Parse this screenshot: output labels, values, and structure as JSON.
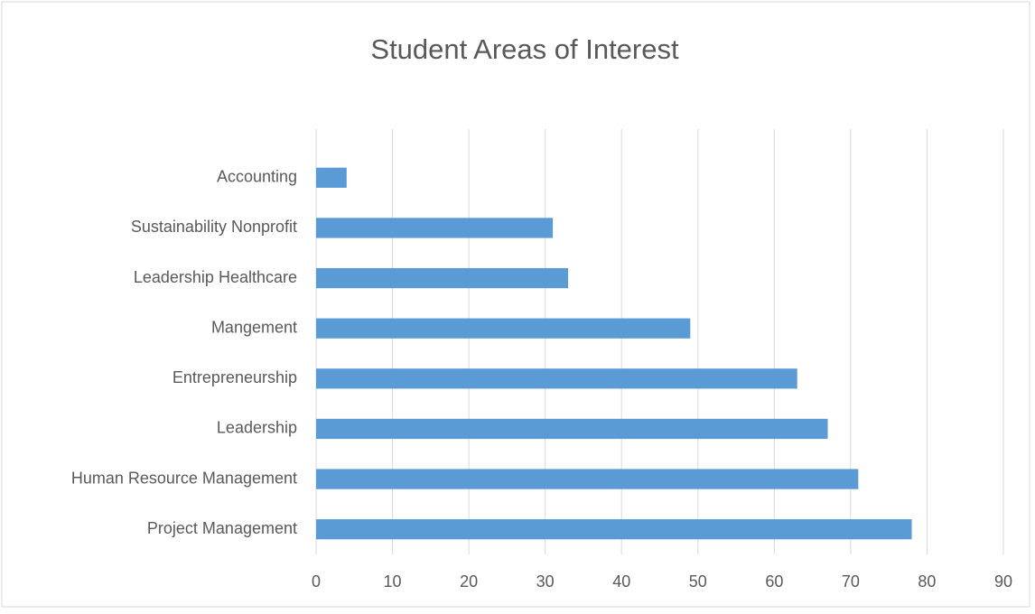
{
  "chart_data": {
    "type": "bar",
    "orientation": "horizontal",
    "title": "Student Areas of Interest",
    "categories": [
      "Project Management",
      "Human Resource Management",
      "Leadership",
      "Entrepreneurship",
      "Mangement",
      "Leadership Healthcare",
      "Sustainability Nonprofit",
      "Accounting"
    ],
    "values": [
      78,
      71,
      67,
      63,
      49,
      33,
      31,
      4
    ],
    "color": "#5b9bd5",
    "xlim": [
      0,
      90
    ],
    "xticks": [
      0,
      10,
      20,
      30,
      40,
      50,
      60,
      70,
      80,
      90
    ],
    "grid": true
  }
}
